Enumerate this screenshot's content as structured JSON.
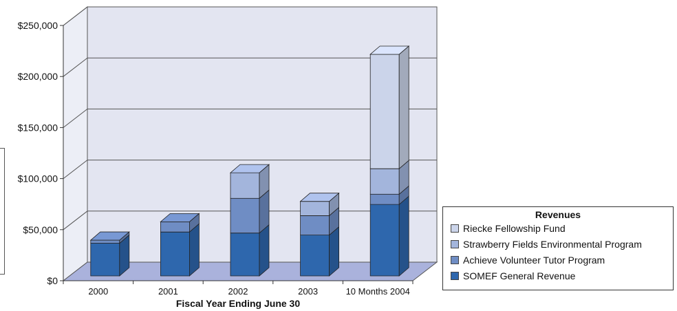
{
  "chart_data": {
    "type": "bar",
    "stacked": true,
    "categories": [
      "2000",
      "2001",
      "2002",
      "2003",
      "10 Months 2004"
    ],
    "series": [
      {
        "name": "SOMEF General Revenue",
        "values": [
          32000,
          43000,
          42000,
          40000,
          70000
        ],
        "color": "#2e67ad"
      },
      {
        "name": "Achieve Volunteer Tutor Program",
        "values": [
          3000,
          10000,
          34000,
          19000,
          10000
        ],
        "color": "#6f8dc4"
      },
      {
        "name": "Strawberry Fields Environmental Program",
        "values": [
          0,
          0,
          25000,
          14000,
          25000
        ],
        "color": "#a3b5dc"
      },
      {
        "name": "Riecke Fellowship Fund",
        "values": [
          0,
          0,
          0,
          0,
          112000
        ],
        "color": "#cbd4ea"
      }
    ],
    "title": "",
    "xlabel": "Fiscal Year Ending June 30",
    "ylabel": "",
    "ylim": [
      0,
      250000
    ],
    "yticks": [
      "$0",
      "$50,000",
      "$100,000",
      "$150,000",
      "$200,000",
      "$250,000"
    ],
    "grid": true,
    "legend_title": "Revenues",
    "legend_position": "right"
  }
}
